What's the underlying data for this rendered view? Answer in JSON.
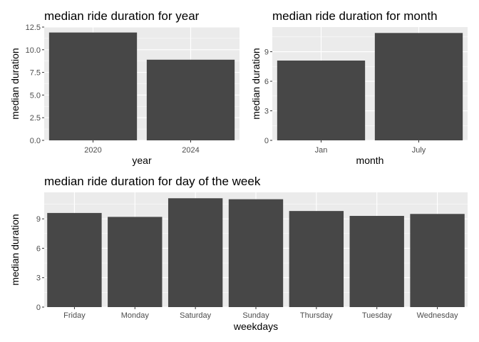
{
  "colors": {
    "panel": "#ebebeb",
    "grid_major": "#ffffff",
    "grid_minor": "#f5f5f5",
    "bar": "#474747",
    "tick_text": "#4d4d4d"
  },
  "chart_data": [
    {
      "type": "bar",
      "title": "median ride duration for year",
      "xlabel": "year",
      "ylabel": "median duration",
      "categories": [
        "2020",
        "2024"
      ],
      "values": [
        11.9,
        8.9
      ],
      "ylim": [
        0,
        12.5
      ],
      "yticks": [
        0,
        2.5,
        5,
        7.5,
        10,
        12.5
      ],
      "ytick_labels": [
        "0.0",
        "2.5",
        "5.0",
        "7.5",
        "10.0",
        "12.5"
      ],
      "grid": true,
      "legend": "none"
    },
    {
      "type": "bar",
      "title": "median ride duration for month",
      "xlabel": "month",
      "ylabel": "median duration",
      "categories": [
        "Jan",
        "July"
      ],
      "values": [
        8.1,
        10.9
      ],
      "ylim": [
        0,
        11.5
      ],
      "yticks": [
        0,
        3,
        6,
        9
      ],
      "ytick_labels": [
        "0",
        "3",
        "6",
        "9"
      ],
      "grid": true,
      "legend": "none"
    },
    {
      "type": "bar",
      "title": "median ride duration for day of the week",
      "xlabel": "weekdays",
      "ylabel": "median duration",
      "categories": [
        "Friday",
        "Monday",
        "Saturday",
        "Sunday",
        "Thursday",
        "Tuesday",
        "Wednesday"
      ],
      "values": [
        9.6,
        9.2,
        11.1,
        11.0,
        9.8,
        9.3,
        9.5
      ],
      "ylim": [
        0,
        11.7
      ],
      "yticks": [
        0,
        3,
        6,
        9
      ],
      "ytick_labels": [
        "0",
        "3",
        "6",
        "9"
      ],
      "grid": true,
      "legend": "none"
    }
  ]
}
